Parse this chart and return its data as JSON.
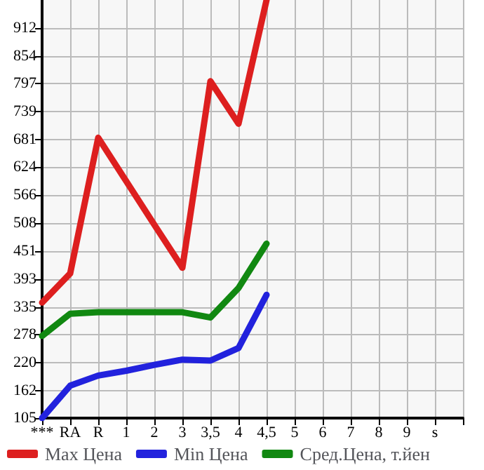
{
  "chart_data": {
    "type": "line",
    "categories": [
      "***",
      "RA",
      "R",
      "1",
      "2",
      "3",
      "3,5",
      "4",
      "4,5",
      "5",
      "6",
      "7",
      "8",
      "9",
      "s",
      null
    ],
    "series": [
      {
        "name": "Max Цена",
        "color": "#dd1f1f",
        "values": [
          344,
          404,
          685,
          595,
          505,
          416,
          802,
          714,
          970,
          null,
          null,
          null,
          null,
          null,
          null,
          null
        ]
      },
      {
        "name": "Min Цена",
        "color": "#2222dd",
        "values": [
          105,
          172,
          193,
          203,
          215,
          226,
          224,
          250,
          360,
          null,
          null,
          null,
          null,
          null,
          null,
          null
        ]
      },
      {
        "name": "Сред.Цена, т.йен",
        "color": "#118811",
        "values": [
          275,
          321,
          324,
          324,
          324,
          324,
          313,
          374,
          466,
          null,
          null,
          null,
          null,
          null,
          null,
          null
        ]
      }
    ],
    "ylim": [
      105,
      970
    ],
    "yticks": [
      105,
      162,
      220,
      278,
      335,
      393,
      451,
      508,
      566,
      624,
      681,
      739,
      797,
      854,
      912
    ],
    "grid": true,
    "legend": "bottom",
    "marker": "none",
    "line_style": "solid"
  }
}
